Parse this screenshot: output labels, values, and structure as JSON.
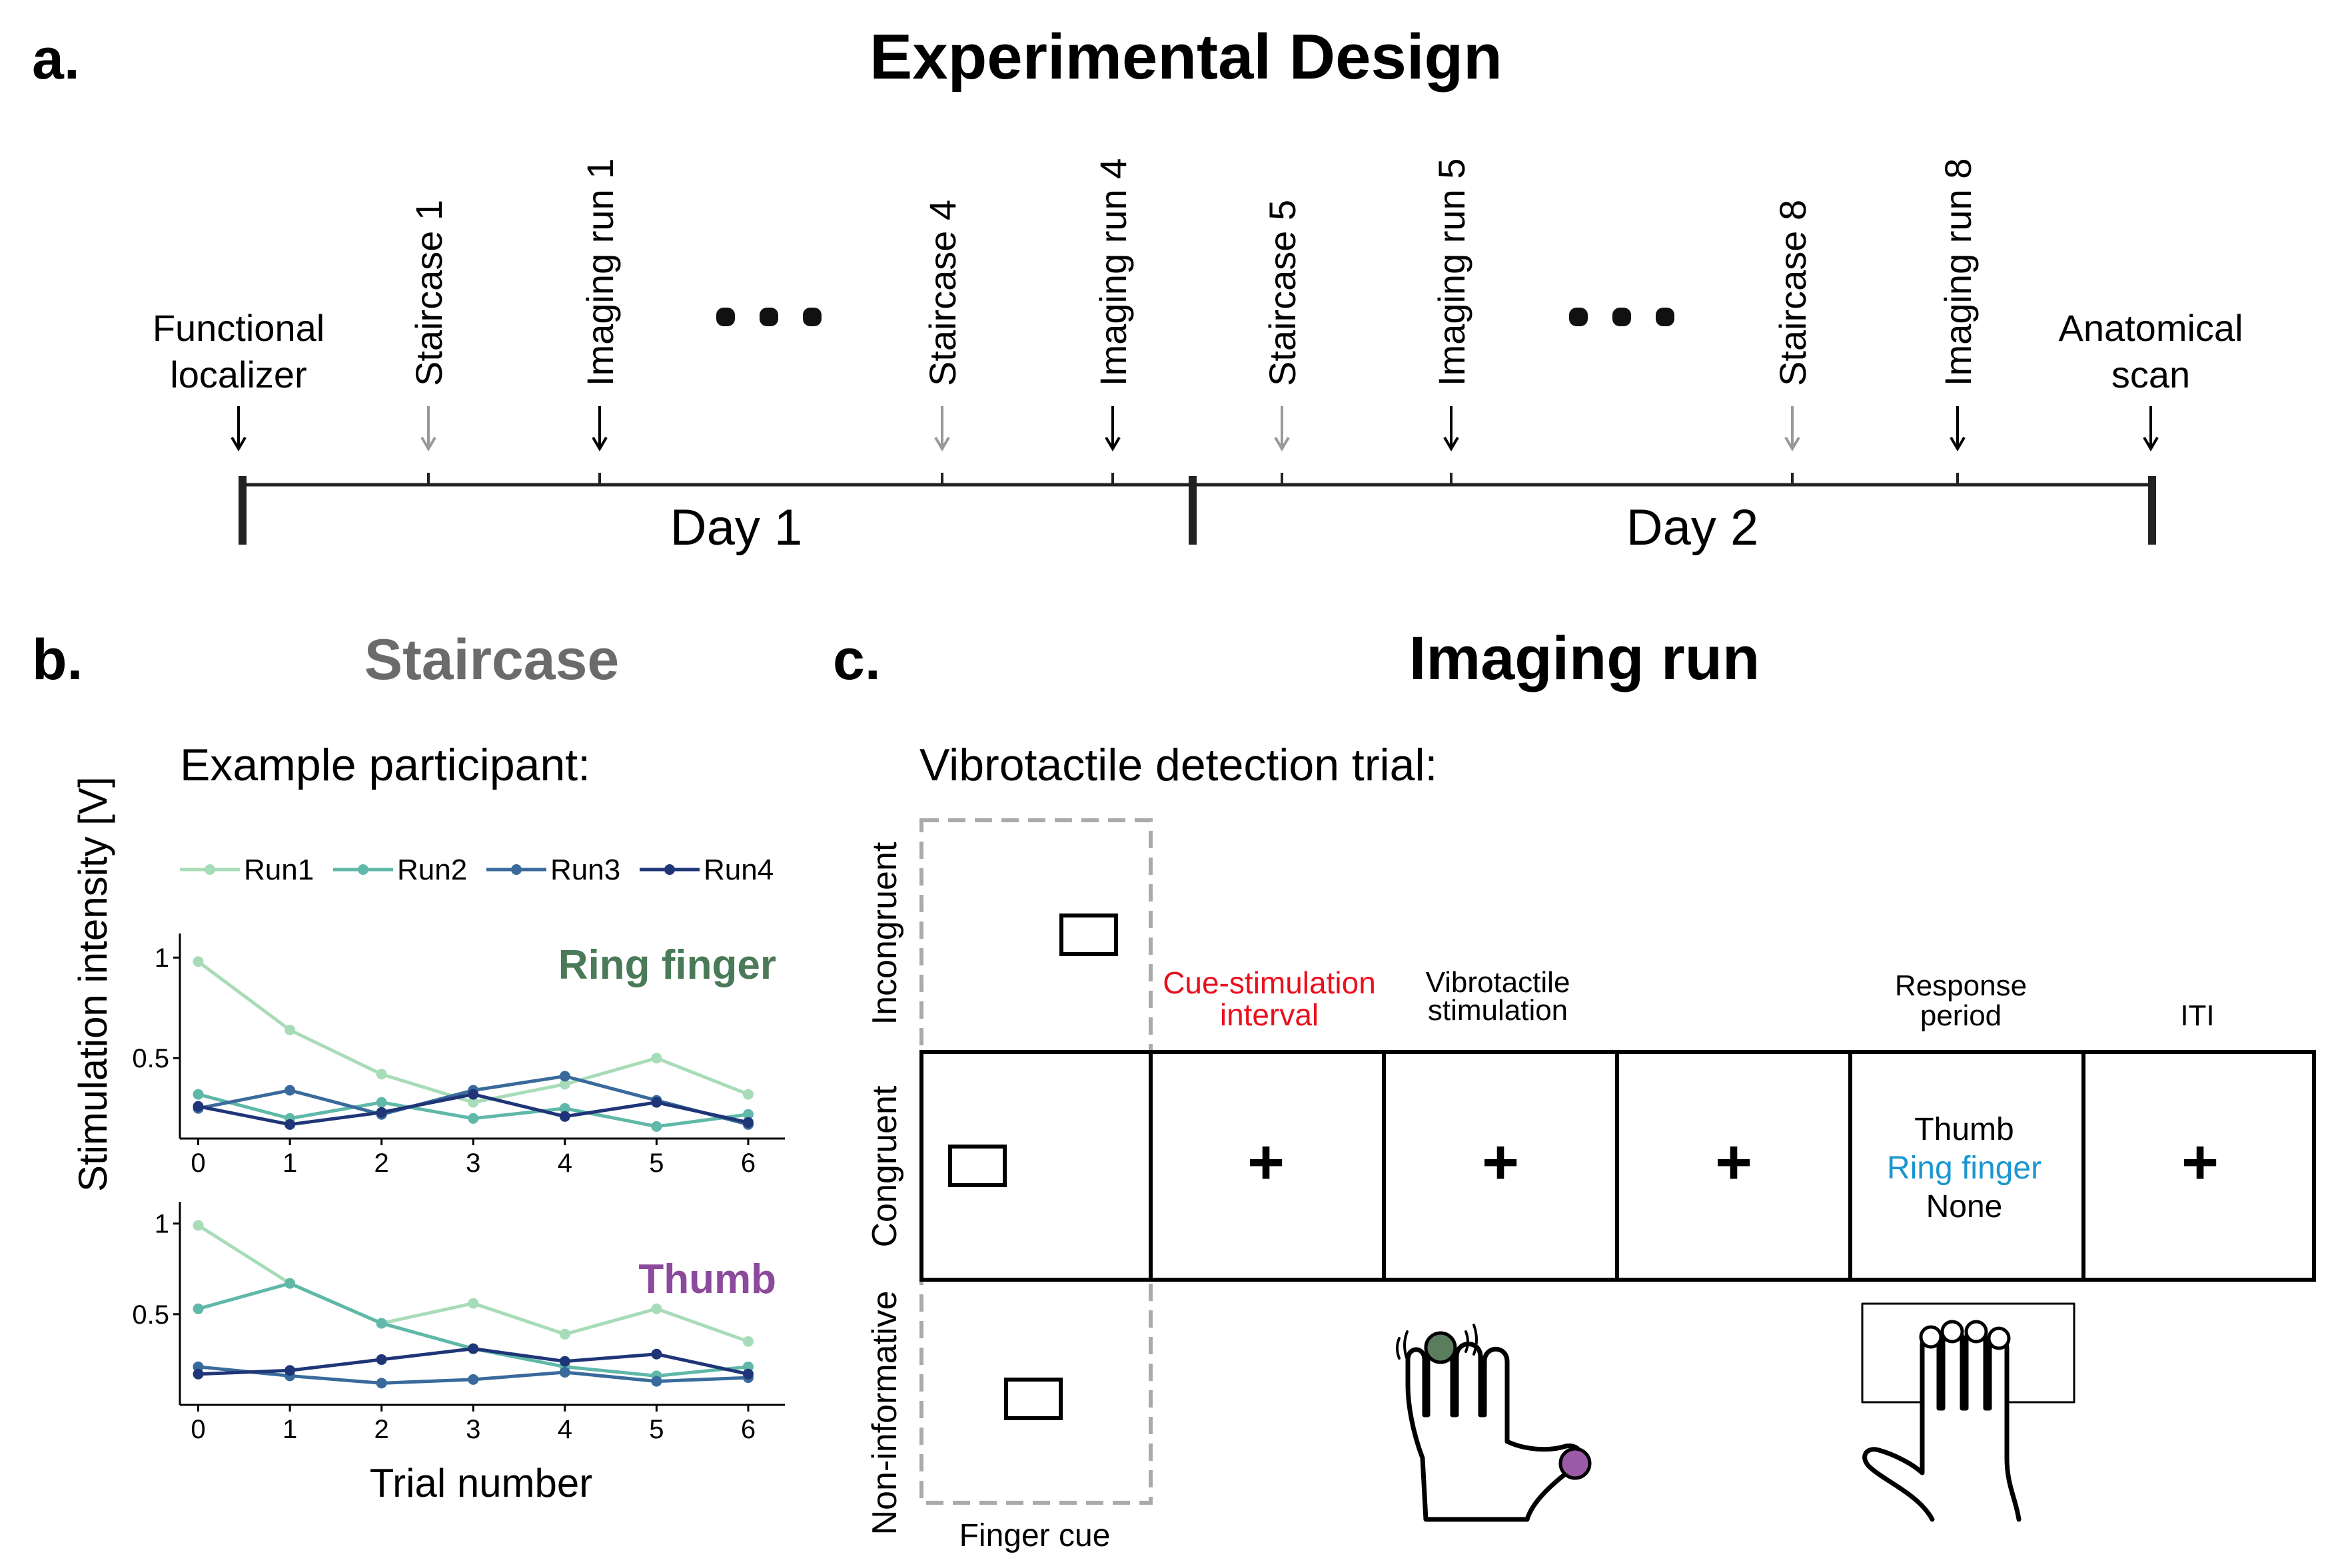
{
  "panel_a": {
    "label": "a.",
    "title": "Experimental Design",
    "events": [
      {
        "text": "Functional localizer",
        "lines": [
          "Functional",
          "localizer"
        ],
        "arrow": "black",
        "rotated": false
      },
      {
        "text": "Staircase 1",
        "arrow": "gray",
        "rotated": true
      },
      {
        "text": "Imaging run 1",
        "arrow": "black",
        "rotated": true
      },
      {
        "text": "Staircase 4",
        "arrow": "gray",
        "rotated": true
      },
      {
        "text": "Imaging run 4",
        "arrow": "black",
        "rotated": true
      },
      {
        "text": "Staircase 5",
        "arrow": "gray",
        "rotated": true
      },
      {
        "text": "Imaging run 5",
        "arrow": "black",
        "rotated": true
      },
      {
        "text": "Staircase 8",
        "arrow": "gray",
        "rotated": true
      },
      {
        "text": "Imaging run 8",
        "arrow": "black",
        "rotated": true
      },
      {
        "text": "Anatomical scan",
        "lines": [
          "Anatomical",
          "scan"
        ],
        "arrow": "black",
        "rotated": false
      }
    ],
    "day1": "Day 1",
    "day2": "Day 2",
    "colors": {
      "black_arrow": "#000000",
      "gray_arrow": "#999999"
    }
  },
  "panel_b": {
    "label": "b.",
    "title": "Staircase",
    "title_color": "#6b6b6b",
    "subtitle": "Example participant:",
    "ylabel": "Stimulation  intensity [V]",
    "xlabel": "Trial number",
    "legend": [
      "Run1",
      "Run2",
      "Run3",
      "Run4"
    ]
  },
  "chart_data": [
    {
      "type": "line",
      "title": "Ring finger",
      "title_color": "#4a7a58",
      "x": [
        0,
        1,
        2,
        3,
        4,
        5,
        6
      ],
      "xlim": [
        -0.2,
        6.4
      ],
      "ylim": [
        0.1,
        1.12
      ],
      "yticks": [
        0.5,
        1
      ],
      "ytick_labels": [
        "0.5",
        "1"
      ],
      "series": [
        {
          "name": "Run1",
          "color": "#a8dcb8",
          "values": [
            0.98,
            0.64,
            0.42,
            0.28,
            0.37,
            0.5,
            0.32
          ]
        },
        {
          "name": "Run2",
          "color": "#5fb8a8",
          "values": [
            0.32,
            0.2,
            0.28,
            0.2,
            0.25,
            0.16,
            0.22
          ]
        },
        {
          "name": "Run3",
          "color": "#3a6a9c",
          "values": [
            0.25,
            0.34,
            0.22,
            0.34,
            0.41,
            0.29,
            0.17
          ]
        },
        {
          "name": "Run4",
          "color": "#1f3578",
          "values": [
            0.26,
            0.17,
            0.23,
            0.32,
            0.21,
            0.28,
            0.18
          ]
        }
      ]
    },
    {
      "type": "line",
      "title": "Thumb",
      "title_color": "#8c4a9c",
      "x": [
        0,
        1,
        2,
        3,
        4,
        5,
        6
      ],
      "xlim": [
        -0.2,
        6.4
      ],
      "ylim": [
        0.0,
        1.12
      ],
      "yticks": [
        0.5,
        1
      ],
      "ytick_labels": [
        "0.5",
        "1"
      ],
      "series": [
        {
          "name": "Run1",
          "color": "#a8dcb8",
          "values": [
            0.99,
            0.67,
            0.45,
            0.56,
            0.39,
            0.53,
            0.35
          ]
        },
        {
          "name": "Run2",
          "color": "#5fb8a8",
          "values": [
            0.53,
            0.67,
            0.45,
            0.31,
            0.21,
            0.16,
            0.21
          ]
        },
        {
          "name": "Run3",
          "color": "#3a6a9c",
          "values": [
            0.21,
            0.16,
            0.12,
            0.14,
            0.18,
            0.13,
            0.15
          ]
        },
        {
          "name": "Run4",
          "color": "#1f3578",
          "values": [
            0.17,
            0.19,
            0.25,
            0.31,
            0.24,
            0.28,
            0.17
          ]
        }
      ]
    }
  ],
  "panel_c": {
    "label": "c.",
    "title": "Imaging run",
    "subtitle": "Vibrotactile detection trial:",
    "conditions": [
      "Incongruent",
      "Congruent",
      "Non-informative"
    ],
    "finger_cue_label": "Finger cue",
    "phases": [
      {
        "label_lines": [
          "Cue-stimulation",
          "interval"
        ],
        "color": "#e8101e"
      },
      {
        "label_lines": [
          "Vibrotactile",
          "stimulation"
        ],
        "color": "#000000"
      },
      {
        "label_lines": [],
        "color": "#000000"
      },
      {
        "label_lines": [
          "Response",
          "period"
        ],
        "color": "#000000"
      },
      {
        "label_lines": [
          "ITI"
        ],
        "color": "#000000"
      }
    ],
    "fixation": "+",
    "response_options": [
      {
        "text": "Thumb",
        "color": "#000000"
      },
      {
        "text": "Ring finger",
        "color": "#1a96d0"
      },
      {
        "text": "None",
        "color": "#000000"
      }
    ],
    "colors": {
      "ring_dot": "#5a7d5e",
      "thumb_dot": "#9a5aa8",
      "dash": "#aaaaaa"
    }
  }
}
